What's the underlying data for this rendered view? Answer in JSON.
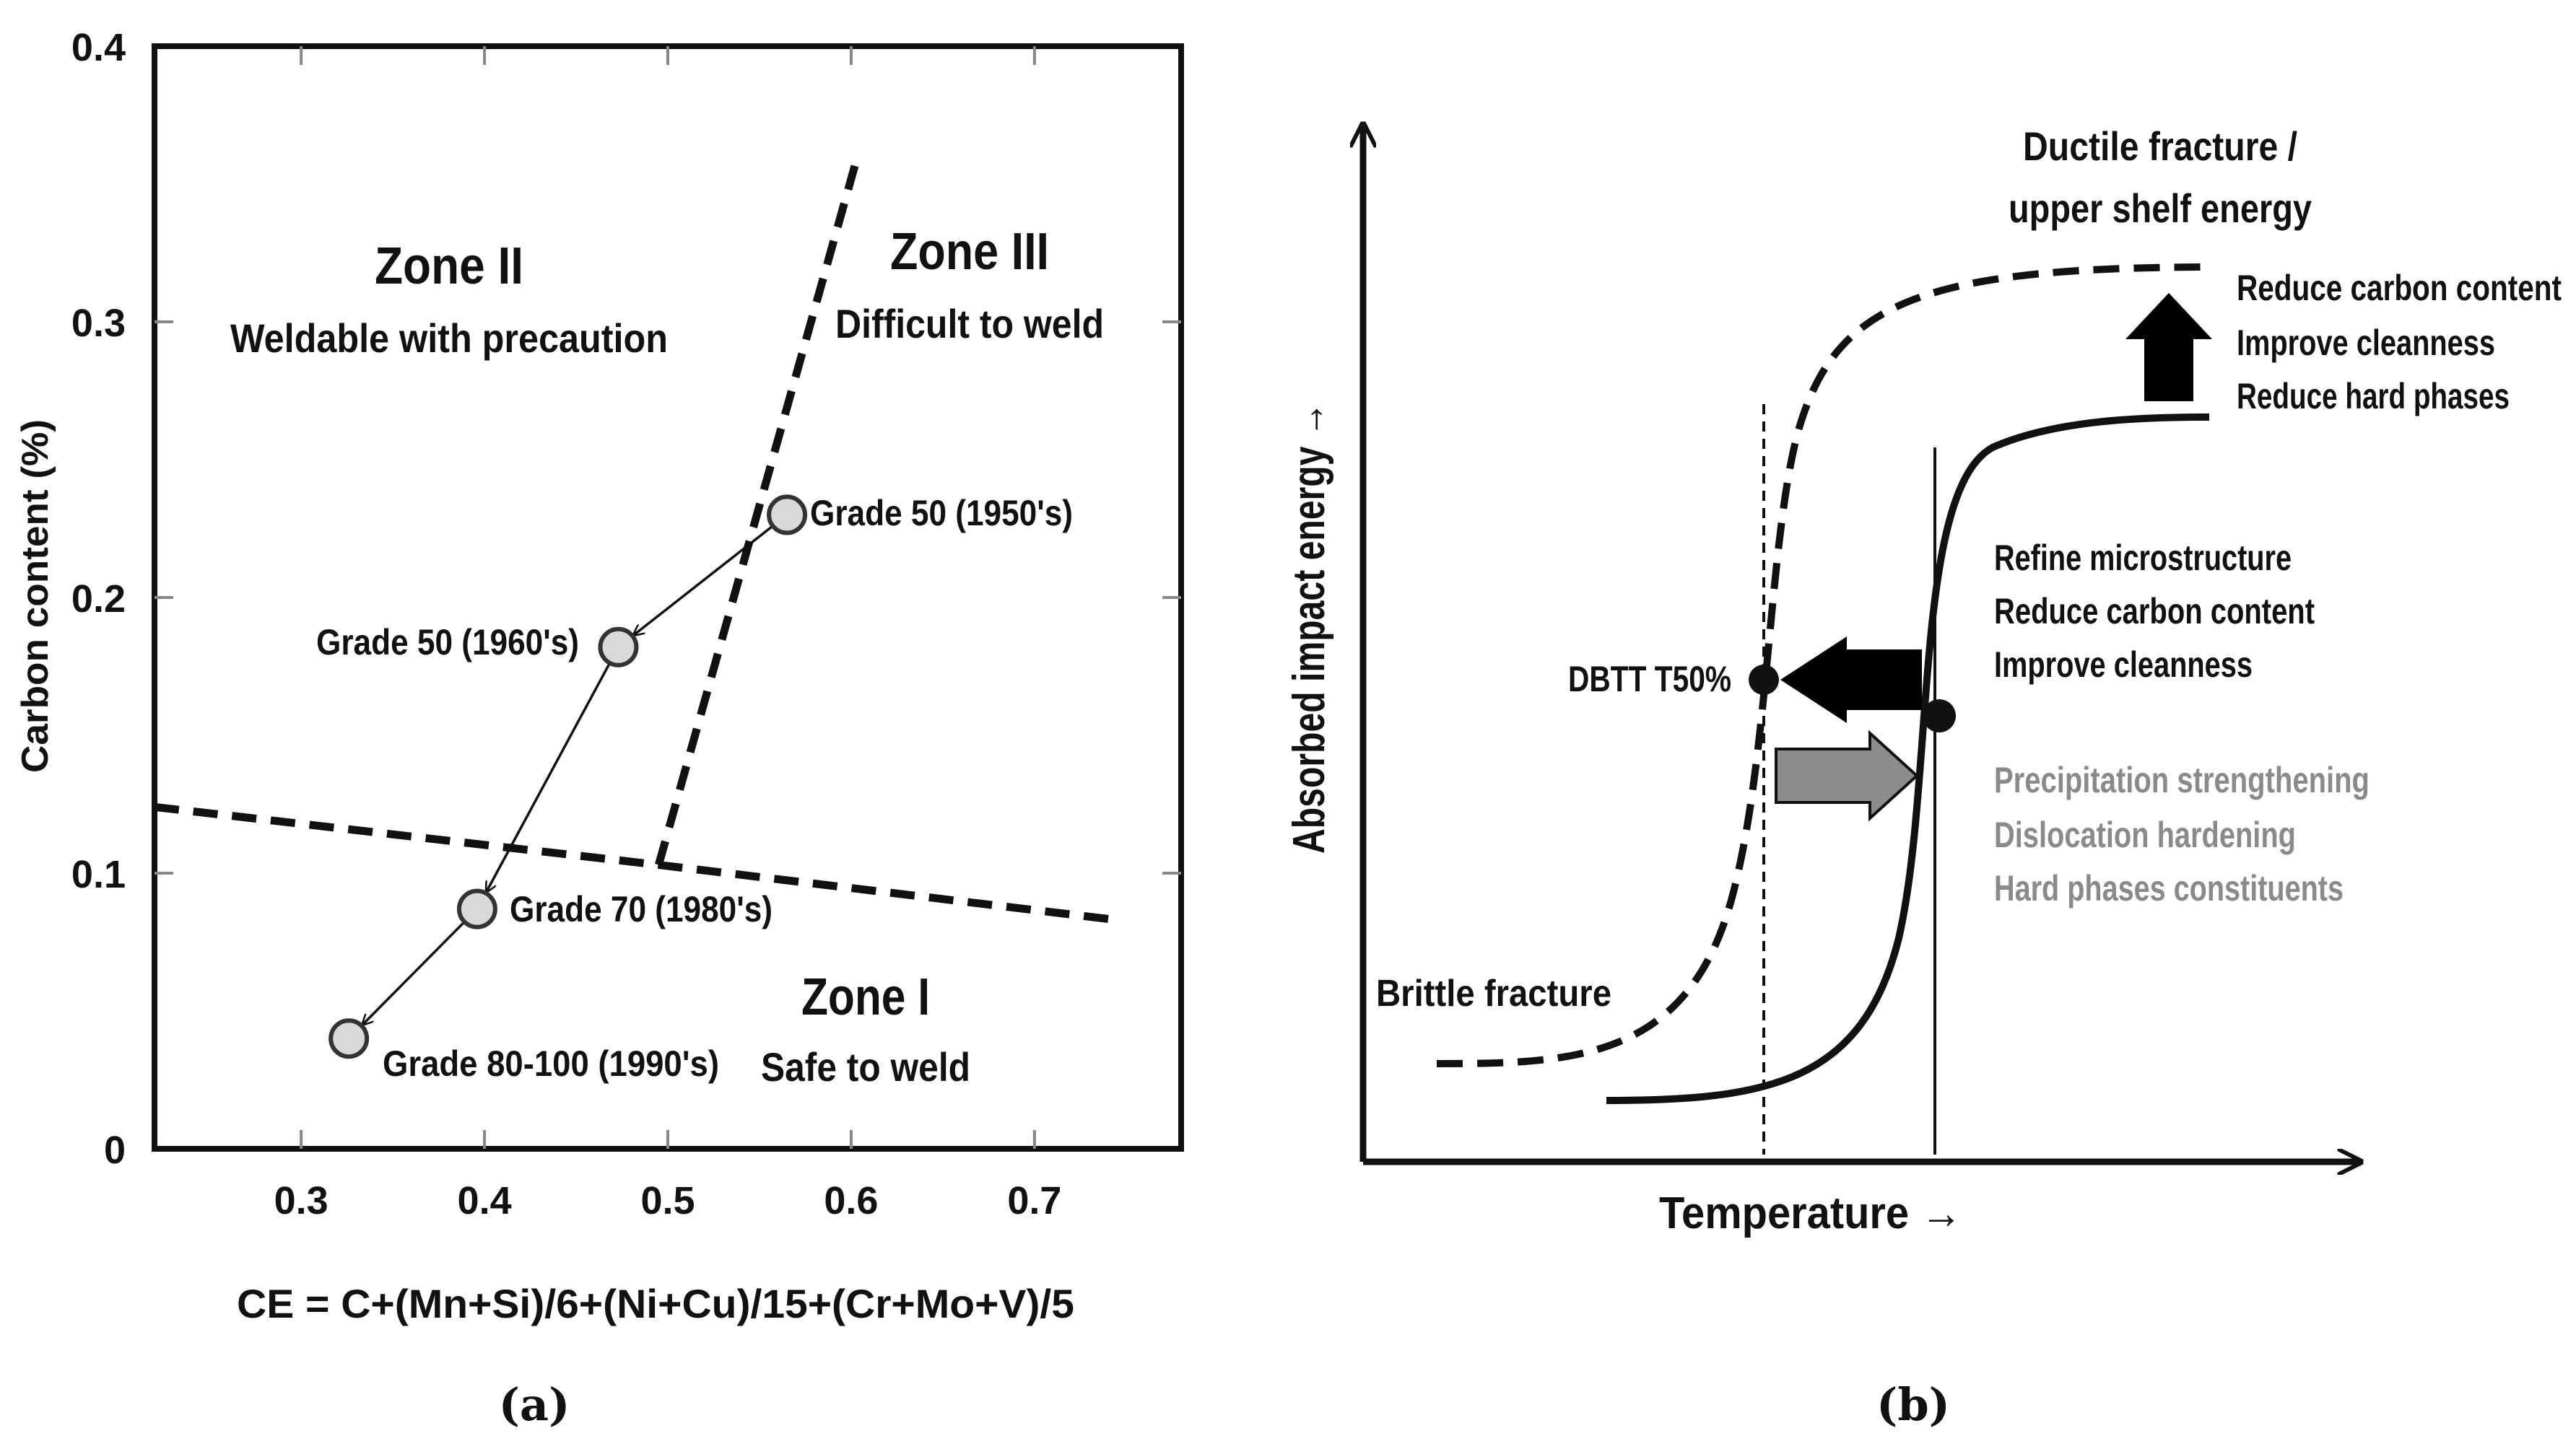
{
  "chart_data": [
    {
      "panel": "a",
      "type": "scatter",
      "panel_label": "(a)",
      "xlabel": "CE = C+(Mn+Si)/6+(Ni+Cu)/15+(Cr+Mo+V)/5",
      "ylabel": "Carbon content (%)",
      "xlim": [
        0.22,
        0.78
      ],
      "ylim": [
        0,
        0.4
      ],
      "xticks": [
        "0.3",
        "0.4",
        "0.5",
        "0.6",
        "0.7"
      ],
      "yticks": [
        "0",
        "0.1",
        "0.2",
        "0.3",
        "0.4"
      ],
      "points": [
        {
          "label": "Grade 50 (1950's)",
          "x": 0.565,
          "y": 0.23
        },
        {
          "label": "Grade 50 (1960's)",
          "x": 0.473,
          "y": 0.182
        },
        {
          "label": "Grade 70 (1980's)",
          "x": 0.396,
          "y": 0.087
        },
        {
          "label": "Grade 80-100 (1990's)",
          "x": 0.326,
          "y": 0.04
        }
      ],
      "boundaries": [
        {
          "name": "lower",
          "x": [
            0.22,
            0.495,
            0.745
          ],
          "y": [
            0.124,
            0.103,
            0.083
          ]
        },
        {
          "name": "upper",
          "x": [
            0.495,
            0.603
          ],
          "y": [
            0.103,
            0.359
          ]
        }
      ],
      "zones": [
        {
          "title": "Zone II",
          "subtitle": "Weldable with precaution"
        },
        {
          "title": "Zone III",
          "subtitle": "Difficult to weld"
        },
        {
          "title": "Zone I",
          "subtitle": "Safe to weld"
        }
      ]
    },
    {
      "panel": "b",
      "type": "line",
      "panel_label": "(b)",
      "xlabel": "Temperature →",
      "ylabel": "Absorbed impact energy →",
      "top_label": [
        "Ductile fracture /",
        "upper shelf energy"
      ],
      "bottom_label": "Brittle fracture",
      "dbtt_label": "DBTT T50%",
      "up_arrow_notes": [
        "Reduce carbon content",
        "Improve cleanness",
        "Reduce hard phases"
      ],
      "left_arrow_notes": [
        "Refine microstructure",
        "Reduce carbon content",
        "Improve cleanness"
      ],
      "right_arrow_notes": [
        "Precipitation strengthening",
        "Dislocation hardening",
        "Hard phases constituents"
      ],
      "note_colors": {
        "dark": "#111111",
        "grey": "#8a8a8a"
      }
    }
  ]
}
